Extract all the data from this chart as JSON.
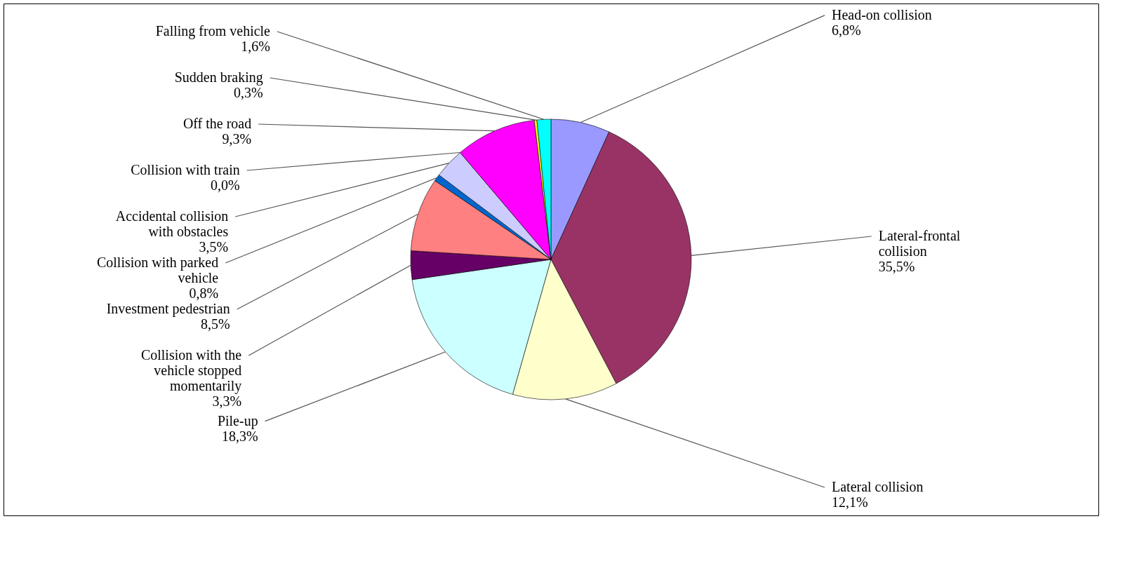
{
  "chart_data": {
    "type": "pie",
    "categories": [
      "Head-on collision",
      "Lateral-frontal collision",
      "Lateral collision",
      "Pile-up",
      "Collision with the vehicle stopped momentarily",
      "Investment pedestrian",
      "Collision with parked vehicle",
      "Accidental collision with obstacles",
      "Collision with train",
      "Off the road",
      "Sudden braking",
      "Falling from vehicle"
    ],
    "values": [
      6.8,
      35.5,
      12.1,
      18.3,
      3.3,
      8.5,
      0.8,
      3.5,
      0.0,
      9.3,
      0.3,
      1.6
    ],
    "value_labels": [
      "6,8%",
      "35,5%",
      "12,1%",
      "18,3%",
      "3,3%",
      "8,5%",
      "0,8%",
      "3,5%",
      "0,0%",
      "9,3%",
      "0,3%",
      "1,6%"
    ],
    "colors": [
      "#9999ff",
      "#993366",
      "#ffffcc",
      "#ccffff",
      "#660066",
      "#ff8080",
      "#0066cc",
      "#ccccff",
      "#000080",
      "#ff00ff",
      "#ffff00",
      "#00ffff"
    ]
  }
}
